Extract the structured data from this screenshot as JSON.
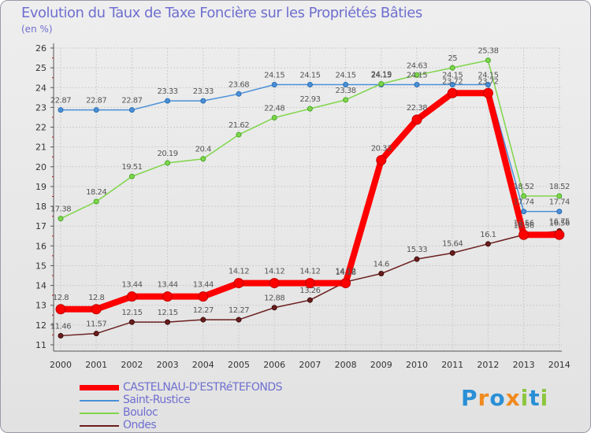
{
  "title": "Evolution du Taux de Taxe Foncière sur les Propriétés Bâties",
  "unit_label": "(en %)",
  "logo": {
    "text": "Proxiti",
    "colors": [
      "#2a8fd6",
      "#f08a1e",
      "#2a8fd6",
      "#f08a1e",
      "#8cc63f",
      "#2a8fd6",
      "#8cc63f"
    ]
  },
  "chart_data": {
    "type": "line",
    "title": "Evolution du Taux de Taxe Foncière sur les Propriétés Bâties",
    "ylabel": "(en %)",
    "xlabel": "",
    "ylim": [
      11,
      26
    ],
    "yticks": [
      11,
      12,
      13,
      14,
      15,
      16,
      17,
      18,
      19,
      20,
      21,
      22,
      23,
      24,
      25,
      26
    ],
    "categories": [
      "2000",
      "2001",
      "2002",
      "2003",
      "2004",
      "2005",
      "2006",
      "2007",
      "2008",
      "2009",
      "2010",
      "2011",
      "2012",
      "2013",
      "2014"
    ],
    "series": [
      {
        "name": "CASTELNAU-D'ESTRéTEFONDS",
        "color": "#ff0000",
        "values": [
          12.8,
          12.8,
          13.44,
          13.44,
          13.44,
          14.12,
          14.12,
          14.12,
          14.12,
          20.33,
          22.38,
          23.72,
          23.72,
          16.56,
          16.56
        ],
        "labels": [
          "12.8",
          "12.8",
          "13.44",
          "13.44",
          "13.44",
          "14.12",
          "14.12",
          "14.12",
          "14.12",
          "20.33",
          "22.38",
          "23.72",
          "23.72",
          "16.56",
          "16.56"
        ]
      },
      {
        "name": "Saint-Rustice",
        "color": "#4a90d9",
        "values": [
          22.87,
          22.87,
          22.87,
          23.33,
          23.33,
          23.68,
          24.15,
          24.15,
          24.15,
          24.15,
          24.15,
          24.15,
          24.15,
          17.74,
          17.74
        ],
        "labels": [
          "22.87",
          "22.87",
          "22.87",
          "23.33",
          "23.33",
          "23.68",
          "24.15",
          "24.15",
          "24.15",
          "24.15",
          "24.15",
          "24.15",
          "24.15",
          "17.74",
          "17.74"
        ]
      },
      {
        "name": "Bouloc",
        "color": "#7fd64a",
        "values": [
          17.38,
          18.24,
          19.51,
          20.19,
          20.4,
          21.62,
          22.48,
          22.93,
          23.38,
          24.19,
          24.63,
          25,
          25.38,
          18.52,
          18.52
        ],
        "labels": [
          "17.38",
          "18.24",
          "19.51",
          "20.19",
          "20.4",
          "21.62",
          "22.48",
          "22.93",
          "23.38",
          "24.19",
          "24.63",
          "25",
          "25.38",
          "18.52",
          "18.52"
        ]
      },
      {
        "name": "Ondes",
        "color": "#6b1e1e",
        "values": [
          11.46,
          11.57,
          12.15,
          12.15,
          12.27,
          12.27,
          12.88,
          13.26,
          14.18,
          14.6,
          15.33,
          15.64,
          16.1,
          16.56,
          16.75
        ],
        "labels": [
          "11.46",
          "11.57",
          "12.15",
          "12.15",
          "12.27",
          "12.27",
          "12.88",
          "13.26",
          "14.18",
          "14.6",
          "15.33",
          "15.64",
          "16.1",
          "16.56",
          "16.75"
        ]
      }
    ]
  }
}
